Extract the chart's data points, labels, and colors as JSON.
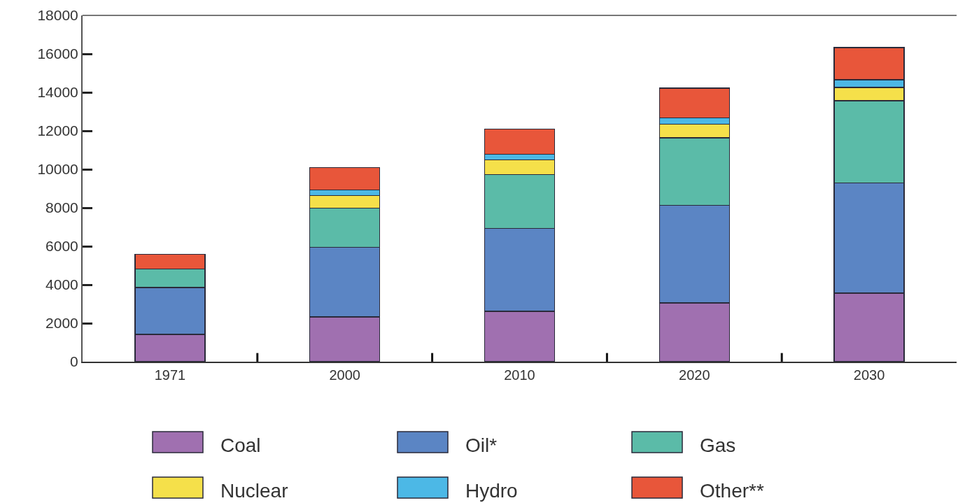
{
  "chart_data": {
    "type": "bar",
    "stacked": true,
    "categories": [
      "1971",
      "2000",
      "2010",
      "2020",
      "2030"
    ],
    "series": [
      {
        "name": "Coal",
        "color": "#a070b0",
        "values": [
          1420,
          2330,
          2620,
          3060,
          3570
        ]
      },
      {
        "name": "Oil*",
        "color": "#5b85c4",
        "values": [
          2440,
          3610,
          4300,
          5070,
          5720
        ]
      },
      {
        "name": "Gas",
        "color": "#5bbba8",
        "values": [
          950,
          2040,
          2810,
          3500,
          4270
        ]
      },
      {
        "name": "Nuclear",
        "color": "#f5e04a",
        "values": [
          null,
          660,
          770,
          720,
          690
        ]
      },
      {
        "name": "Hydro",
        "color": "#4cb8e6",
        "values": [
          null,
          290,
          290,
          330,
          400
        ]
      },
      {
        "name": "Other**",
        "color": "#e8563a",
        "values": [
          770,
          1160,
          1310,
          1530,
          1680
        ]
      }
    ],
    "ylim": [
      0,
      18000
    ],
    "yticks": [
      0,
      2000,
      4000,
      6000,
      8000,
      10000,
      12000,
      14000,
      16000,
      18000
    ],
    "legend": "bottom"
  }
}
